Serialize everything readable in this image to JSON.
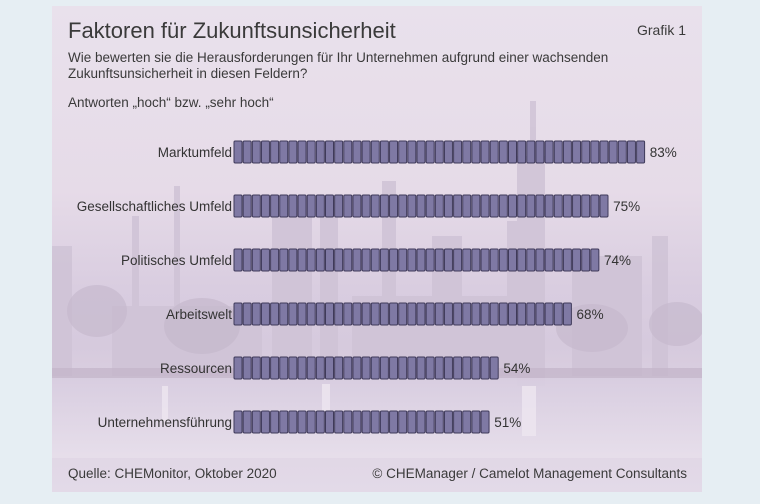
{
  "header": {
    "title": "Faktoren für Zukunftsunsicherheit",
    "grafik": "Grafik 1",
    "subtitle": "Wie bewerten sie die Herausforderungen für Ihr Unternehmen aufgrund einer wachsenden Zukunftsunsicherheit in diesen Feldern?",
    "note": "Antworten „hoch“ bzw. „sehr hoch“"
  },
  "footer": {
    "source": "Quelle: CHEMonitor, Oktober 2020",
    "copyright": "© CHEManager / Camelot Management Consultants"
  },
  "colors": {
    "bar": "#7f79a4",
    "bar_outline": "#3f3a5a",
    "text": "#333333"
  },
  "chart_data": {
    "type": "bar",
    "orientation": "horizontal",
    "categories": [
      "Marktumfeld",
      "Gesellschaftliches Umfeld",
      "Politisches Umfeld",
      "Arbeitswelt",
      "Ressourcen",
      "Unternehmensführung"
    ],
    "values": [
      83,
      75,
      74,
      68,
      54,
      51
    ],
    "value_labels": [
      "83%",
      "75%",
      "74%",
      "68%",
      "54%",
      "51%"
    ],
    "unit": "%",
    "xlim": [
      0,
      100
    ]
  }
}
